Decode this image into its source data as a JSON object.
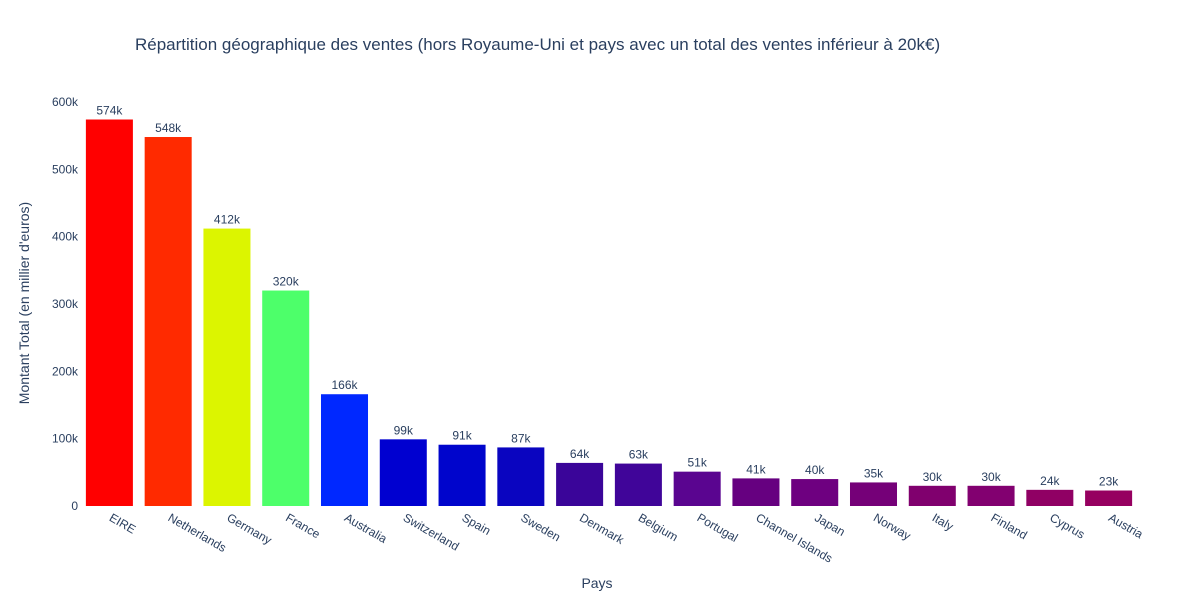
{
  "chart_data": {
    "type": "bar",
    "title": "Répartition géographique des ventes (hors Royaume-Uni et pays avec un total des ventes inférieur à 20k€)",
    "xlabel": "Pays",
    "ylabel": "Montant Total (en millier d'euros)",
    "ylim": [
      0,
      600000
    ],
    "yticks": [
      0,
      100000,
      200000,
      300000,
      400000,
      500000,
      600000
    ],
    "ytick_labels": [
      "0",
      "100k",
      "200k",
      "300k",
      "400k",
      "500k",
      "600k"
    ],
    "grid": false,
    "categories": [
      "EIRE",
      "Netherlands",
      "Germany",
      "France",
      "Australia",
      "Switzerland",
      "Spain",
      "Sweden",
      "Denmark",
      "Belgium",
      "Portugal",
      "Channel Islands",
      "Japan",
      "Norway",
      "Italy",
      "Finland",
      "Cyprus",
      "Austria"
    ],
    "values": [
      574000,
      548000,
      412000,
      320000,
      166000,
      99000,
      91000,
      87000,
      64000,
      63000,
      51000,
      41000,
      40000,
      35000,
      30000,
      30000,
      24000,
      23000
    ],
    "value_labels": [
      "574k",
      "548k",
      "412k",
      "320k",
      "166k",
      "99k",
      "91k",
      "87k",
      "64k",
      "63k",
      "51k",
      "41k",
      "40k",
      "35k",
      "30k",
      "30k",
      "24k",
      "23k"
    ],
    "colors": [
      "#ff0000",
      "#ff2a00",
      "#dcf500",
      "#4dff6a",
      "#0028ff",
      "#0000d0",
      "#0005cc",
      "#0a05c0",
      "#3a0599",
      "#400599",
      "#5a0590",
      "#660080",
      "#6e0080",
      "#750078",
      "#80006e",
      "#820070",
      "#900064",
      "#960060"
    ]
  }
}
